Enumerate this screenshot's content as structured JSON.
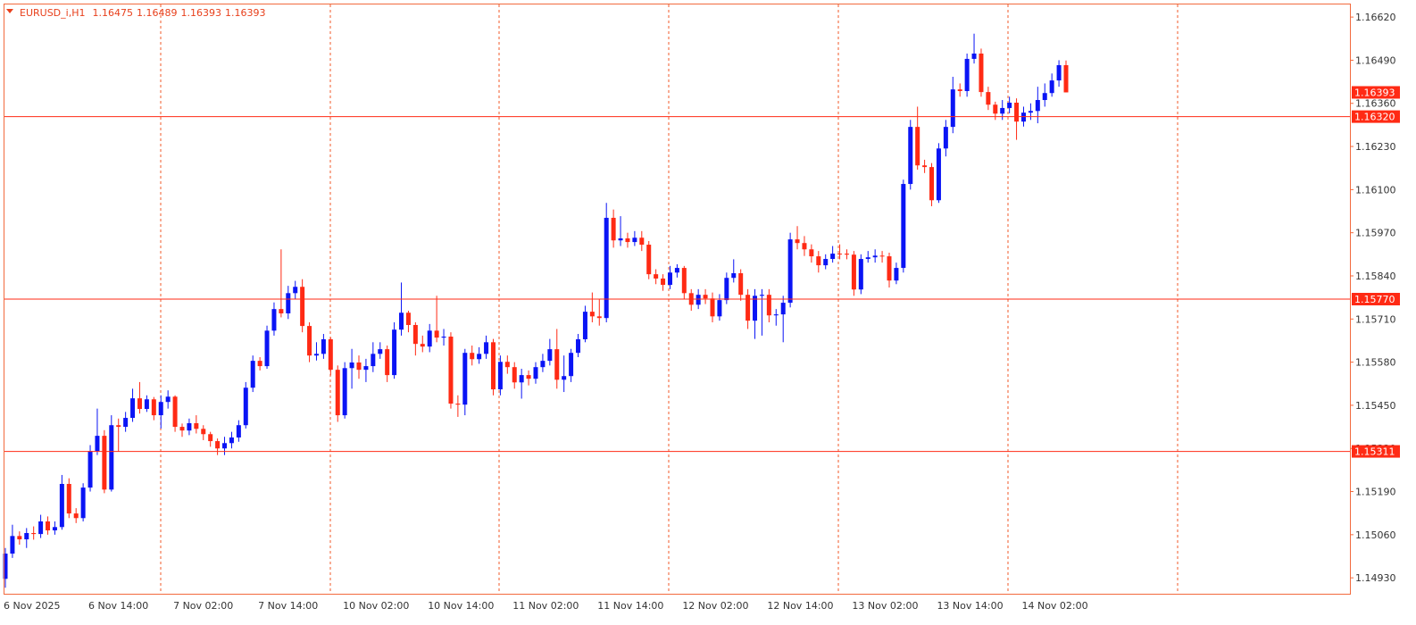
{
  "chart_data": {
    "type": "candlestick",
    "symbol": "EURUSD_i,H1",
    "up_color": "#0a14f5",
    "down_color": "#ff2a14",
    "level_color": "#ff2a14",
    "grid": false,
    "ylim": [
      1.14882,
      1.16658
    ],
    "yticks": [
      {
        "value": 1.1493,
        "label": "1.14930"
      },
      {
        "value": 1.1506,
        "label": "1.15060"
      },
      {
        "value": 1.1519,
        "label": "1.15190"
      },
      {
        "value": 1.1532,
        "label": "1.15320"
      },
      {
        "value": 1.1545,
        "label": "1.15450"
      },
      {
        "value": 1.1558,
        "label": "1.15580"
      },
      {
        "value": 1.1571,
        "label": "1.15710"
      },
      {
        "value": 1.1584,
        "label": "1.15840"
      },
      {
        "value": 1.1597,
        "label": "1.15970"
      },
      {
        "value": 1.161,
        "label": "1.16100"
      },
      {
        "value": 1.1623,
        "label": "1.16230"
      },
      {
        "value": 1.1636,
        "label": "1.16360"
      },
      {
        "value": 1.1649,
        "label": "1.16490"
      },
      {
        "value": 1.1662,
        "label": "1.16620"
      }
    ],
    "levels": [
      {
        "value": 1.1632,
        "label": "1.16320"
      },
      {
        "value": 1.1577,
        "label": "1.15770"
      },
      1.15311
    ],
    "x": [
      "6 Nov 2025",
      null,
      null,
      null,
      null,
      null,
      null,
      null,
      null,
      null,
      null,
      null,
      "6 Nov 14:00",
      null,
      null,
      null,
      null,
      null,
      null,
      null,
      null,
      null,
      null,
      null,
      "7 Nov 02:00",
      null,
      null,
      null,
      null,
      null,
      null,
      null,
      null,
      null,
      null,
      null,
      "7 Nov 14:00",
      null,
      null,
      null,
      null,
      null,
      null,
      null,
      null,
      null,
      null,
      null,
      "10 Nov 02:00",
      null,
      null,
      null,
      null,
      null,
      null,
      null,
      null,
      null,
      null,
      null,
      "10 Nov 14:00",
      null,
      null,
      null,
      null,
      null,
      null,
      null,
      null,
      null,
      null,
      null,
      "11 Nov 02:00",
      null,
      null,
      null,
      null,
      null,
      null,
      null,
      null,
      null,
      null,
      null,
      "11 Nov 14:00",
      null,
      null,
      null,
      null,
      null,
      null,
      null,
      null,
      null,
      null,
      null,
      "12 Nov 02:00",
      null,
      null,
      null,
      null,
      null,
      null,
      null,
      null,
      null,
      null,
      null,
      "12 Nov 14:00",
      null,
      null,
      null,
      null,
      null,
      null,
      null,
      null,
      null,
      null,
      null,
      "13 Nov 02:00",
      null,
      null,
      null,
      null,
      null,
      null,
      null,
      null,
      null,
      null,
      null,
      "13 Nov 14:00",
      null,
      null,
      null,
      null,
      null,
      null,
      null,
      null,
      null,
      null,
      null,
      "14 Nov 02:00",
      null,
      null,
      null,
      null,
      null,
      null
    ],
    "open": [
      1.14927,
      1.15003,
      1.15056,
      1.15046,
      1.15065,
      1.15062,
      1.151,
      1.15073,
      1.15083,
      1.15213,
      1.15124,
      1.1511,
      1.15202,
      1.15312,
      1.15358,
      1.15196,
      1.1539,
      1.15385,
      1.15412,
      1.15471,
      1.15439,
      1.15468,
      1.1542,
      1.1546,
      1.15476,
      1.15385,
      1.15374,
      1.15396,
      1.15379,
      1.15363,
      1.15342,
      1.1532,
      1.15336,
      1.15353,
      1.1539,
      1.15503,
      1.15584,
      1.15568,
      1.15675,
      1.1574,
      1.15727,
      1.15788,
      1.15807,
      1.15689,
      1.156,
      1.15605,
      1.15649,
      1.15557,
      1.1542,
      1.15562,
      1.15579,
      1.15557,
      1.15568,
      1.15605,
      1.15619,
      1.15541,
      1.15678,
      1.15729,
      1.15692,
      1.15635,
      1.15627,
      1.15675,
      1.15654,
      1.15657,
      1.15455,
      1.15452,
      1.15608,
      1.15589,
      1.15605,
      1.1564,
      1.15498,
      1.15581,
      1.15565,
      1.15519,
      1.15541,
      1.1553,
      1.15565,
      1.15584,
      1.15619,
      1.15527,
      1.15538,
      1.15608,
      1.15649,
      1.15732,
      1.15718,
      1.15713,
      1.16015,
      1.15947,
      1.15953,
      1.15942,
      1.15955,
      1.15934,
      1.15845,
      1.15832,
      1.15813,
      1.1585,
      1.15864,
      1.15788,
      1.15753,
      1.15783,
      1.15772,
      1.15718,
      1.15767,
      1.15834,
      1.15848,
      1.15783,
      1.15705,
      1.1578,
      1.15783,
      1.15721,
      1.15724,
      1.15759,
      1.1595,
      1.15939,
      1.1592,
      1.15899,
      1.15872,
      1.15891,
      1.15907,
      1.15907,
      1.15904,
      1.15799,
      1.15891,
      1.15896,
      1.15901,
      1.15899,
      1.15826,
      1.15864,
      1.16117,
      1.16289,
      1.16173,
      1.16168,
      1.16068,
      1.16224,
      1.16289,
      1.16402,
      1.16397,
      1.16494,
      1.1651,
      1.16394,
      1.16356,
      1.16329,
      1.16346,
      1.16362,
      1.16305,
      1.16332,
      1.16337,
      1.1637,
      1.16391,
      1.16429,
      1.16475
    ],
    "high": [
      1.1502,
      1.1509,
      1.1507,
      1.1508,
      1.15085,
      1.1512,
      1.15115,
      1.151,
      1.1524,
      1.1523,
      1.1514,
      1.15215,
      1.1533,
      1.1544,
      1.15375,
      1.1542,
      1.1541,
      1.1543,
      1.155,
      1.1552,
      1.1548,
      1.15475,
      1.1548,
      1.15495,
      1.1548,
      1.15395,
      1.1541,
      1.1542,
      1.1539,
      1.1537,
      1.1535,
      1.15355,
      1.1537,
      1.15405,
      1.1552,
      1.156,
      1.15595,
      1.1569,
      1.1576,
      1.1592,
      1.1581,
      1.15825,
      1.1583,
      1.157,
      1.1564,
      1.15665,
      1.15655,
      1.1557,
      1.1558,
      1.1562,
      1.156,
      1.1559,
      1.1564,
      1.1564,
      1.1563,
      1.157,
      1.1582,
      1.15735,
      1.157,
      1.1566,
      1.15695,
      1.1578,
      1.1568,
      1.1567,
      1.1548,
      1.1562,
      1.1563,
      1.15625,
      1.1566,
      1.1565,
      1.156,
      1.156,
      1.1558,
      1.1556,
      1.15555,
      1.1558,
      1.15605,
      1.1565,
      1.1568,
      1.156,
      1.1562,
      1.15665,
      1.1575,
      1.1579,
      1.1577,
      1.1606,
      1.1604,
      1.1602,
      1.1597,
      1.15975,
      1.15975,
      1.15945,
      1.1586,
      1.15845,
      1.1587,
      1.15875,
      1.1587,
      1.158,
      1.158,
      1.158,
      1.1579,
      1.15785,
      1.1585,
      1.1589,
      1.1586,
      1.158,
      1.158,
      1.158,
      1.158,
      1.1574,
      1.1578,
      1.1597,
      1.1599,
      1.1596,
      1.15935,
      1.15915,
      1.15905,
      1.1593,
      1.15935,
      1.1592,
      1.15915,
      1.15905,
      1.15915,
      1.1592,
      1.15915,
      1.1591,
      1.1588,
      1.1613,
      1.1631,
      1.1635,
      1.1619,
      1.1618,
      1.1624,
      1.1631,
      1.1644,
      1.1642,
      1.1651,
      1.1657,
      1.16525,
      1.1641,
      1.16365,
      1.1637,
      1.1638,
      1.16375,
      1.1635,
      1.1636,
      1.1641,
      1.1642,
      1.1645,
      1.1649,
      1.16489
    ],
    "low": [
      1.149,
      1.1499,
      1.1503,
      1.1502,
      1.15045,
      1.1505,
      1.1506,
      1.1506,
      1.15075,
      1.1511,
      1.15095,
      1.151,
      1.1519,
      1.153,
      1.15185,
      1.1519,
      1.1531,
      1.1537,
      1.154,
      1.15425,
      1.1543,
      1.15405,
      1.1538,
      1.1544,
      1.1537,
      1.15355,
      1.1536,
      1.15365,
      1.15345,
      1.15325,
      1.153,
      1.153,
      1.1532,
      1.1534,
      1.1538,
      1.1549,
      1.15555,
      1.1556,
      1.1566,
      1.15715,
      1.1571,
      1.1577,
      1.1567,
      1.1558,
      1.15585,
      1.1559,
      1.1554,
      1.154,
      1.1541,
      1.155,
      1.1553,
      1.1552,
      1.1555,
      1.1559,
      1.1552,
      1.1553,
      1.1566,
      1.1567,
      1.156,
      1.1561,
      1.1561,
      1.1564,
      1.1563,
      1.1544,
      1.15415,
      1.1542,
      1.1557,
      1.15575,
      1.1559,
      1.1548,
      1.1548,
      1.15545,
      1.155,
      1.1547,
      1.1551,
      1.15515,
      1.1555,
      1.1557,
      1.155,
      1.1549,
      1.1552,
      1.15595,
      1.1564,
      1.157,
      1.1569,
      1.157,
      1.15925,
      1.1593,
      1.15925,
      1.1593,
      1.15915,
      1.1583,
      1.15815,
      1.15795,
      1.158,
      1.15835,
      1.1577,
      1.15735,
      1.1574,
      1.15755,
      1.157,
      1.15705,
      1.15755,
      1.1582,
      1.15765,
      1.1568,
      1.1565,
      1.1566,
      1.157,
      1.1569,
      1.1564,
      1.15745,
      1.1592,
      1.159,
      1.1588,
      1.1585,
      1.1586,
      1.1588,
      1.1589,
      1.1589,
      1.1578,
      1.15785,
      1.1588,
      1.1588,
      1.1588,
      1.15805,
      1.15815,
      1.1585,
      1.161,
      1.1616,
      1.1615,
      1.1605,
      1.1606,
      1.162,
      1.1627,
      1.1638,
      1.1638,
      1.1648,
      1.1638,
      1.1634,
      1.1631,
      1.1631,
      1.1633,
      1.1625,
      1.1629,
      1.1631,
      1.163,
      1.1635,
      1.1638,
      1.1641,
      1.16393
    ],
    "close": [
      1.15003,
      1.15056,
      1.15046,
      1.15065,
      1.15062,
      1.151,
      1.15073,
      1.15083,
      1.15213,
      1.15124,
      1.1511,
      1.15202,
      1.15312,
      1.15358,
      1.15196,
      1.1539,
      1.15385,
      1.15412,
      1.15471,
      1.15439,
      1.15468,
      1.1542,
      1.1546,
      1.15476,
      1.15385,
      1.15374,
      1.15396,
      1.15379,
      1.15363,
      1.15342,
      1.1532,
      1.15336,
      1.15353,
      1.1539,
      1.15503,
      1.15584,
      1.15568,
      1.15675,
      1.1574,
      1.15727,
      1.15788,
      1.15807,
      1.15689,
      1.156,
      1.15605,
      1.15649,
      1.15557,
      1.1542,
      1.15562,
      1.15579,
      1.15557,
      1.15568,
      1.15605,
      1.15619,
      1.15541,
      1.15678,
      1.15729,
      1.15692,
      1.15635,
      1.15627,
      1.15675,
      1.15654,
      1.15657,
      1.15455,
      1.15452,
      1.15608,
      1.15589,
      1.15605,
      1.1564,
      1.15498,
      1.15581,
      1.15565,
      1.15519,
      1.15541,
      1.1553,
      1.15565,
      1.15584,
      1.15619,
      1.15527,
      1.15538,
      1.15608,
      1.15649,
      1.15732,
      1.15718,
      1.15713,
      1.16015,
      1.15947,
      1.15953,
      1.15942,
      1.15955,
      1.15934,
      1.15845,
      1.15832,
      1.15813,
      1.1585,
      1.15864,
      1.15788,
      1.15753,
      1.15783,
      1.15772,
      1.15718,
      1.15767,
      1.15834,
      1.15848,
      1.15783,
      1.15705,
      1.1578,
      1.15783,
      1.15721,
      1.15724,
      1.15759,
      1.1595,
      1.15939,
      1.1592,
      1.15899,
      1.15872,
      1.15891,
      1.15907,
      1.15907,
      1.15904,
      1.15799,
      1.15891,
      1.15896,
      1.15901,
      1.15899,
      1.15826,
      1.15864,
      1.16117,
      1.16289,
      1.16173,
      1.16168,
      1.16068,
      1.16224,
      1.16289,
      1.16402,
      1.16397,
      1.16494,
      1.1651,
      1.16394,
      1.16356,
      1.16329,
      1.16346,
      1.16362,
      1.16305,
      1.16332,
      1.16337,
      1.1637,
      1.16391,
      1.16429,
      1.16475,
      1.16393
    ]
  }
}
